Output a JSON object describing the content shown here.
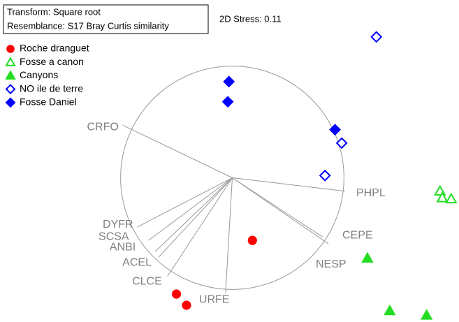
{
  "chart_data": {
    "type": "scatter",
    "transform": "Transform: Square root",
    "resemblance": "Resemblance: S17 Bray Curtis similarity",
    "stress": "2D Stress: 0.11",
    "xlim": [
      -2.08,
      2.03
    ],
    "ylim": [
      -1.29,
      1.59
    ],
    "series": [
      {
        "name": "Roche dranguet",
        "color": "#ff0000",
        "marker": "circle",
        "filled": true,
        "x": [
          0.18,
          -0.5,
          -0.41
        ],
        "values": [
          -0.56,
          -1.04,
          -1.14
        ]
      },
      {
        "name": "Fosse a canon",
        "color": "#22dd22",
        "marker": "triangle",
        "filled": false,
        "x": [
          1.86,
          1.88,
          1.96
        ],
        "values": [
          -0.12,
          -0.18,
          -0.19
        ]
      },
      {
        "name": "Canyons",
        "color": "#22dd22",
        "marker": "triangle",
        "filled": true,
        "x": [
          1.21,
          1.41,
          1.74
        ],
        "values": [
          -0.72,
          -1.19,
          -1.23
        ]
      },
      {
        "name": "NO ile de terre",
        "color": "#0000ff",
        "marker": "diamond",
        "filled": false,
        "x": [
          1.29,
          0.98,
          0.83
        ],
        "values": [
          1.26,
          0.31,
          0.02
        ]
      },
      {
        "name": "Fosse Daniel",
        "color": "#0000ff",
        "marker": "diamond",
        "filled": true,
        "x": [
          -0.03,
          -0.04,
          0.92
        ],
        "values": [
          0.86,
          0.68,
          0.43
        ]
      }
    ],
    "vectors": [
      {
        "name": "CRFO",
        "x": -0.98,
        "y": 0.47
      },
      {
        "name": "PHPL",
        "x": 1.01,
        "y": -0.12
      },
      {
        "name": "DYFR",
        "x": -0.85,
        "y": -0.44
      },
      {
        "name": "SCSA",
        "x": -0.75,
        "y": -0.56
      },
      {
        "name": "ANBI",
        "x": -0.69,
        "y": -0.66
      },
      {
        "name": "ACEL",
        "x": -0.66,
        "y": -0.71
      },
      {
        "name": "CLCE",
        "x": -0.58,
        "y": -0.88
      },
      {
        "name": "URFE",
        "x": -0.06,
        "y": -1.03
      },
      {
        "name": "CEPE",
        "x": 0.81,
        "y": -0.53
      },
      {
        "name": "NESP",
        "x": 0.86,
        "y": -0.59
      }
    ]
  }
}
